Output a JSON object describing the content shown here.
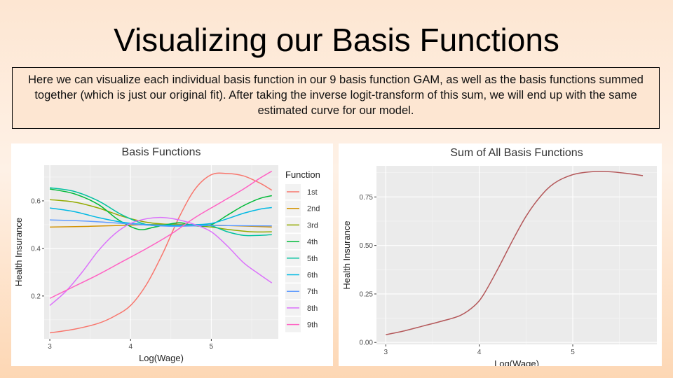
{
  "slide": {
    "title": "Visualizing our Basis Functions",
    "description": "Here we can visualize each individual basis function in our 9 basis function GAM, as well as the basis functions summed together (which is just our original fit). After taking the inverse logit-transform of this sum, we will end up with the same estimated curve for our model."
  },
  "chart_data": [
    {
      "type": "line",
      "title": "Basis Functions",
      "xlabel": "Log(Wage)",
      "ylabel": "Health Insurance",
      "xlim": [
        2.93,
        5.83
      ],
      "ylim": [
        0.02,
        0.75
      ],
      "xticks": [
        3,
        4,
        5
      ],
      "yticks": [
        0.2,
        0.4,
        0.6
      ],
      "grid": true,
      "legend": {
        "title": "Function",
        "position": "right"
      },
      "series": [
        {
          "name": "1st",
          "color": "#F8766D",
          "points": [
            [
              3.0,
              0.045
            ],
            [
              3.3,
              0.06
            ],
            [
              3.6,
              0.085
            ],
            [
              3.8,
              0.115
            ],
            [
              4.0,
              0.16
            ],
            [
              4.2,
              0.25
            ],
            [
              4.4,
              0.38
            ],
            [
              4.6,
              0.53
            ],
            [
              4.8,
              0.65
            ],
            [
              5.0,
              0.71
            ],
            [
              5.2,
              0.715
            ],
            [
              5.4,
              0.705
            ],
            [
              5.6,
              0.675
            ],
            [
              5.75,
              0.645
            ]
          ]
        },
        {
          "name": "2nd",
          "color": "#D39200",
          "points": [
            [
              3.0,
              0.49
            ],
            [
              3.5,
              0.493
            ],
            [
              4.0,
              0.498
            ],
            [
              4.5,
              0.502
            ],
            [
              5.0,
              0.498
            ],
            [
              5.5,
              0.493
            ],
            [
              5.75,
              0.49
            ]
          ]
        },
        {
          "name": "3rd",
          "color": "#93AA00",
          "points": [
            [
              3.0,
              0.605
            ],
            [
              3.3,
              0.595
            ],
            [
              3.6,
              0.57
            ],
            [
              3.9,
              0.535
            ],
            [
              4.2,
              0.51
            ],
            [
              4.5,
              0.5
            ],
            [
              4.8,
              0.495
            ],
            [
              5.0,
              0.49
            ],
            [
              5.2,
              0.48
            ],
            [
              5.5,
              0.47
            ],
            [
              5.75,
              0.47
            ]
          ]
        },
        {
          "name": "4th",
          "color": "#00BA38",
          "points": [
            [
              3.0,
              0.65
            ],
            [
              3.3,
              0.63
            ],
            [
              3.6,
              0.585
            ],
            [
              3.85,
              0.52
            ],
            [
              4.1,
              0.48
            ],
            [
              4.3,
              0.49
            ],
            [
              4.6,
              0.508
            ],
            [
              4.8,
              0.495
            ],
            [
              5.0,
              0.5
            ],
            [
              5.2,
              0.54
            ],
            [
              5.4,
              0.58
            ],
            [
              5.6,
              0.61
            ],
            [
              5.75,
              0.622
            ]
          ]
        },
        {
          "name": "5th",
          "color": "#00C19F",
          "points": [
            [
              3.0,
              0.655
            ],
            [
              3.3,
              0.64
            ],
            [
              3.6,
              0.6
            ],
            [
              3.9,
              0.54
            ],
            [
              4.2,
              0.5
            ],
            [
              4.5,
              0.495
            ],
            [
              4.8,
              0.5
            ],
            [
              5.0,
              0.495
            ],
            [
              5.2,
              0.47
            ],
            [
              5.4,
              0.455
            ],
            [
              5.6,
              0.455
            ],
            [
              5.75,
              0.458
            ]
          ]
        },
        {
          "name": "6th",
          "color": "#00B9E3",
          "points": [
            [
              3.0,
              0.57
            ],
            [
              3.3,
              0.555
            ],
            [
              3.6,
              0.53
            ],
            [
              3.9,
              0.51
            ],
            [
              4.2,
              0.5
            ],
            [
              4.5,
              0.498
            ],
            [
              4.8,
              0.5
            ],
            [
              5.0,
              0.505
            ],
            [
              5.2,
              0.525
            ],
            [
              5.4,
              0.548
            ],
            [
              5.6,
              0.565
            ],
            [
              5.75,
              0.572
            ]
          ]
        },
        {
          "name": "7th",
          "color": "#619CFF",
          "points": [
            [
              3.0,
              0.52
            ],
            [
              3.3,
              0.517
            ],
            [
              3.6,
              0.512
            ],
            [
              3.9,
              0.505
            ],
            [
              4.2,
              0.498
            ],
            [
              4.5,
              0.493
            ],
            [
              4.8,
              0.495
            ],
            [
              5.0,
              0.497
            ],
            [
              5.3,
              0.496
            ],
            [
              5.75,
              0.495
            ]
          ]
        },
        {
          "name": "8th",
          "color": "#DB72FB",
          "points": [
            [
              3.0,
              0.16
            ],
            [
              3.2,
              0.22
            ],
            [
              3.4,
              0.3
            ],
            [
              3.6,
              0.39
            ],
            [
              3.8,
              0.46
            ],
            [
              4.0,
              0.505
            ],
            [
              4.2,
              0.525
            ],
            [
              4.4,
              0.53
            ],
            [
              4.6,
              0.52
            ],
            [
              4.8,
              0.5
            ],
            [
              5.0,
              0.47
            ],
            [
              5.2,
              0.41
            ],
            [
              5.4,
              0.34
            ],
            [
              5.6,
              0.29
            ],
            [
              5.75,
              0.255
            ]
          ]
        },
        {
          "name": "9th",
          "color": "#FF61C3",
          "points": [
            [
              3.0,
              0.19
            ],
            [
              3.3,
              0.24
            ],
            [
              3.6,
              0.29
            ],
            [
              3.9,
              0.345
            ],
            [
              4.2,
              0.4
            ],
            [
              4.5,
              0.46
            ],
            [
              4.8,
              0.53
            ],
            [
              5.1,
              0.59
            ],
            [
              5.4,
              0.65
            ],
            [
              5.6,
              0.695
            ],
            [
              5.75,
              0.725
            ]
          ]
        }
      ]
    },
    {
      "type": "line",
      "title": "Sum of All Basis Functions",
      "xlabel": "Log(Wage)",
      "ylabel": "Health Insurance",
      "xlim": [
        2.9,
        5.9
      ],
      "ylim": [
        -0.01,
        0.91
      ],
      "xticks": [
        3,
        4,
        5
      ],
      "yticks": [
        0.0,
        0.25,
        0.5,
        0.75
      ],
      "ytick_labels": [
        "0.00",
        "0.25",
        "0.50",
        "0.75"
      ],
      "grid": true,
      "series": [
        {
          "color": "#B4585A",
          "points": [
            [
              3.0,
              0.04
            ],
            [
              3.2,
              0.06
            ],
            [
              3.4,
              0.085
            ],
            [
              3.6,
              0.11
            ],
            [
              3.8,
              0.14
            ],
            [
              3.95,
              0.19
            ],
            [
              4.05,
              0.25
            ],
            [
              4.2,
              0.38
            ],
            [
              4.35,
              0.52
            ],
            [
              4.5,
              0.65
            ],
            [
              4.65,
              0.75
            ],
            [
              4.8,
              0.82
            ],
            [
              5.0,
              0.865
            ],
            [
              5.2,
              0.88
            ],
            [
              5.4,
              0.88
            ],
            [
              5.6,
              0.87
            ],
            [
              5.75,
              0.86
            ]
          ]
        }
      ]
    }
  ]
}
